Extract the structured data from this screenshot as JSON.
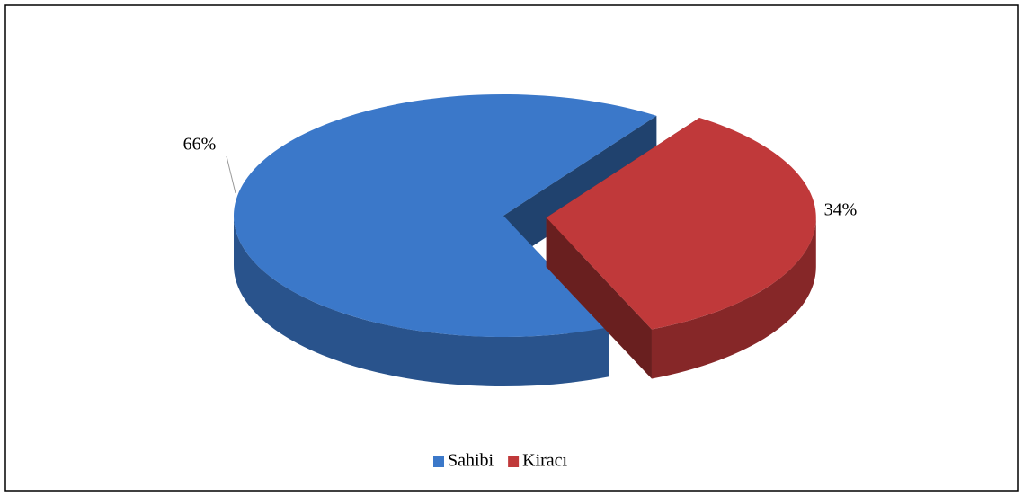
{
  "chart_data": {
    "type": "pie",
    "categories": [
      "Sahibi",
      "Kiracı"
    ],
    "values": [
      66,
      34
    ],
    "value_labels": [
      "66%",
      "34%"
    ],
    "colors": [
      "#3b78c9",
      "#c0393a"
    ],
    "legend": "bottom"
  }
}
